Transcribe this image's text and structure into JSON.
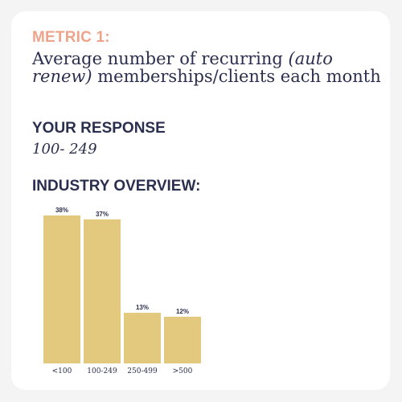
{
  "card": {
    "metric_label": "METRIC 1:",
    "question_part1": "Average number of recurring ",
    "question_italic": "(auto renew)",
    "question_part2": " memberships/clients each month",
    "response_heading": "YOUR RESPONSE",
    "response_value": "100- 249",
    "overview_heading": "INDUSTRY OVERVIEW:"
  },
  "colors": {
    "bar": "#e3c97e",
    "accent": "#eea48a",
    "text": "#2b2f4f"
  },
  "chart_data": {
    "type": "bar",
    "title": "",
    "xlabel": "",
    "ylabel": "",
    "categories": [
      "<100",
      "100-249",
      "250-499",
      ">500"
    ],
    "values": [
      38,
      37,
      13,
      12
    ],
    "value_labels": [
      "38%",
      "37%",
      "13%",
      "12%"
    ],
    "ylim": [
      0,
      38
    ],
    "grid": false,
    "legend": "none"
  }
}
